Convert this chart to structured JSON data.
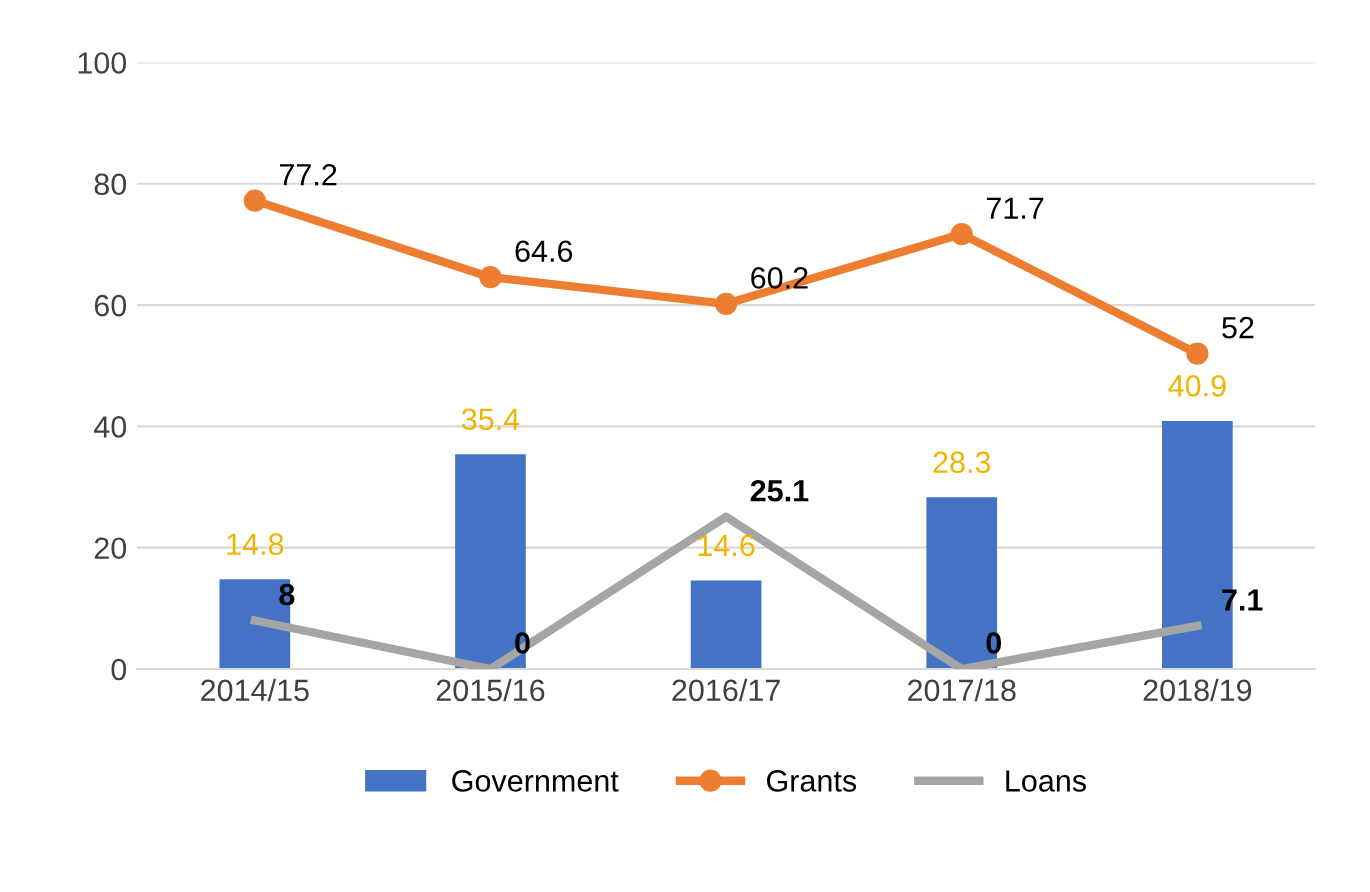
{
  "chart_data": {
    "type": "bar",
    "categories": [
      "2014/15",
      "2015/16",
      "2016/17",
      "2017/18",
      "2018/19"
    ],
    "series": [
      {
        "name": "Government",
        "color": "#4472c4",
        "values": [
          14.8,
          35.4,
          14.6,
          28.3,
          40.9
        ]
      },
      {
        "name": "Grants",
        "type": "line",
        "color": "#ed7d31",
        "marker": "circle",
        "values": [
          77.2,
          64.6,
          60.2,
          71.7,
          52
        ]
      },
      {
        "name": "Loans",
        "type": "line",
        "color": "#a5a5a5",
        "marker": "none",
        "values": [
          8,
          0,
          25.1,
          0,
          7.1
        ]
      }
    ],
    "ylim": [
      0,
      100
    ],
    "yticks": [
      0,
      20,
      40,
      60,
      80,
      100
    ],
    "grid": "y",
    "legend": "bottom",
    "data_labels": true
  }
}
